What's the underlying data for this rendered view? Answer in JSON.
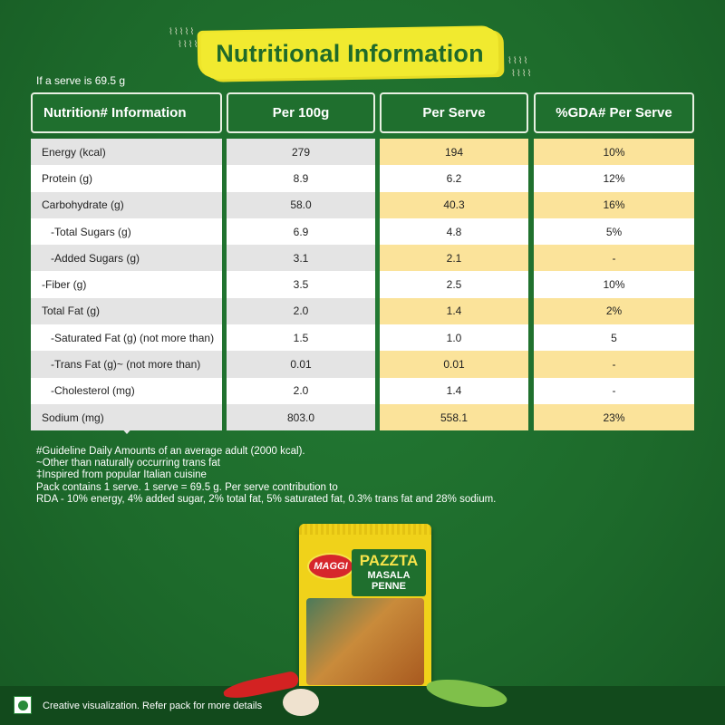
{
  "title": "Nutritional Information",
  "serve_note": "If a serve is 69.5 g",
  "table": {
    "headers": [
      "Nutrition# Information",
      "Per 100g",
      "Per Serve",
      "%GDA# Per Serve"
    ],
    "rows": [
      {
        "name": "Energy (kcal)",
        "per100": "279",
        "perServe": "194",
        "gda": "10%"
      },
      {
        "name": "Protein (g)",
        "per100": "8.9",
        "perServe": "6.2",
        "gda": "12%"
      },
      {
        "name": "Carbohydrate (g)",
        "per100": "58.0",
        "perServe": "40.3",
        "gda": "16%"
      },
      {
        "name": "-Total Sugars (g)",
        "per100": "6.9",
        "perServe": "4.8",
        "gda": "5%"
      },
      {
        "name": "-Added Sugars (g)",
        "per100": "3.1",
        "perServe": "2.1",
        "gda": "-"
      },
      {
        "name": "-Fiber (g)",
        "per100": "3.5",
        "perServe": "2.5",
        "gda": "10%"
      },
      {
        "name": "Total Fat (g)",
        "per100": "2.0",
        "perServe": "1.4",
        "gda": "2%"
      },
      {
        "name": "-Saturated Fat (g) (not more than)",
        "per100": "1.5",
        "perServe": "1.0",
        "gda": "5"
      },
      {
        "name": "-Trans Fat (g)~ (not more than)",
        "per100": "0.01",
        "perServe": "0.01",
        "gda": "-"
      },
      {
        "name": "-Cholesterol (mg)",
        "per100": "2.0",
        "perServe": "1.4",
        "gda": "-"
      },
      {
        "name": "Sodium (mg)",
        "per100": "803.0",
        "perServe": "558.1",
        "gda": "23%"
      }
    ]
  },
  "footnotes": [
    "#Guideline Daily Amounts of an average adult (2000 kcal).",
    "~Other than naturally occurring trans fat",
    "‡Inspired from popular Italian cuisine",
    "Pack contains 1 serve. 1 serve = 69.5 g. Per serve contribution to",
    "RDA - 10% energy, 4% added sugar, 2% total fat, 5% saturated fat, 0.3% trans fat and 28% sodium."
  ],
  "pack": {
    "brand": "MAGGI",
    "name_line1": "PAZZTA",
    "name_line2": "MASALA",
    "name_line3": "PENNE"
  },
  "disclaimer": "Creative visualization. Refer pack for more details",
  "colors": {
    "background": "#1e6b2c",
    "header": "#1f6f2e",
    "title_brush": "#f1ea2f",
    "highlight": "#fbe39a"
  }
}
